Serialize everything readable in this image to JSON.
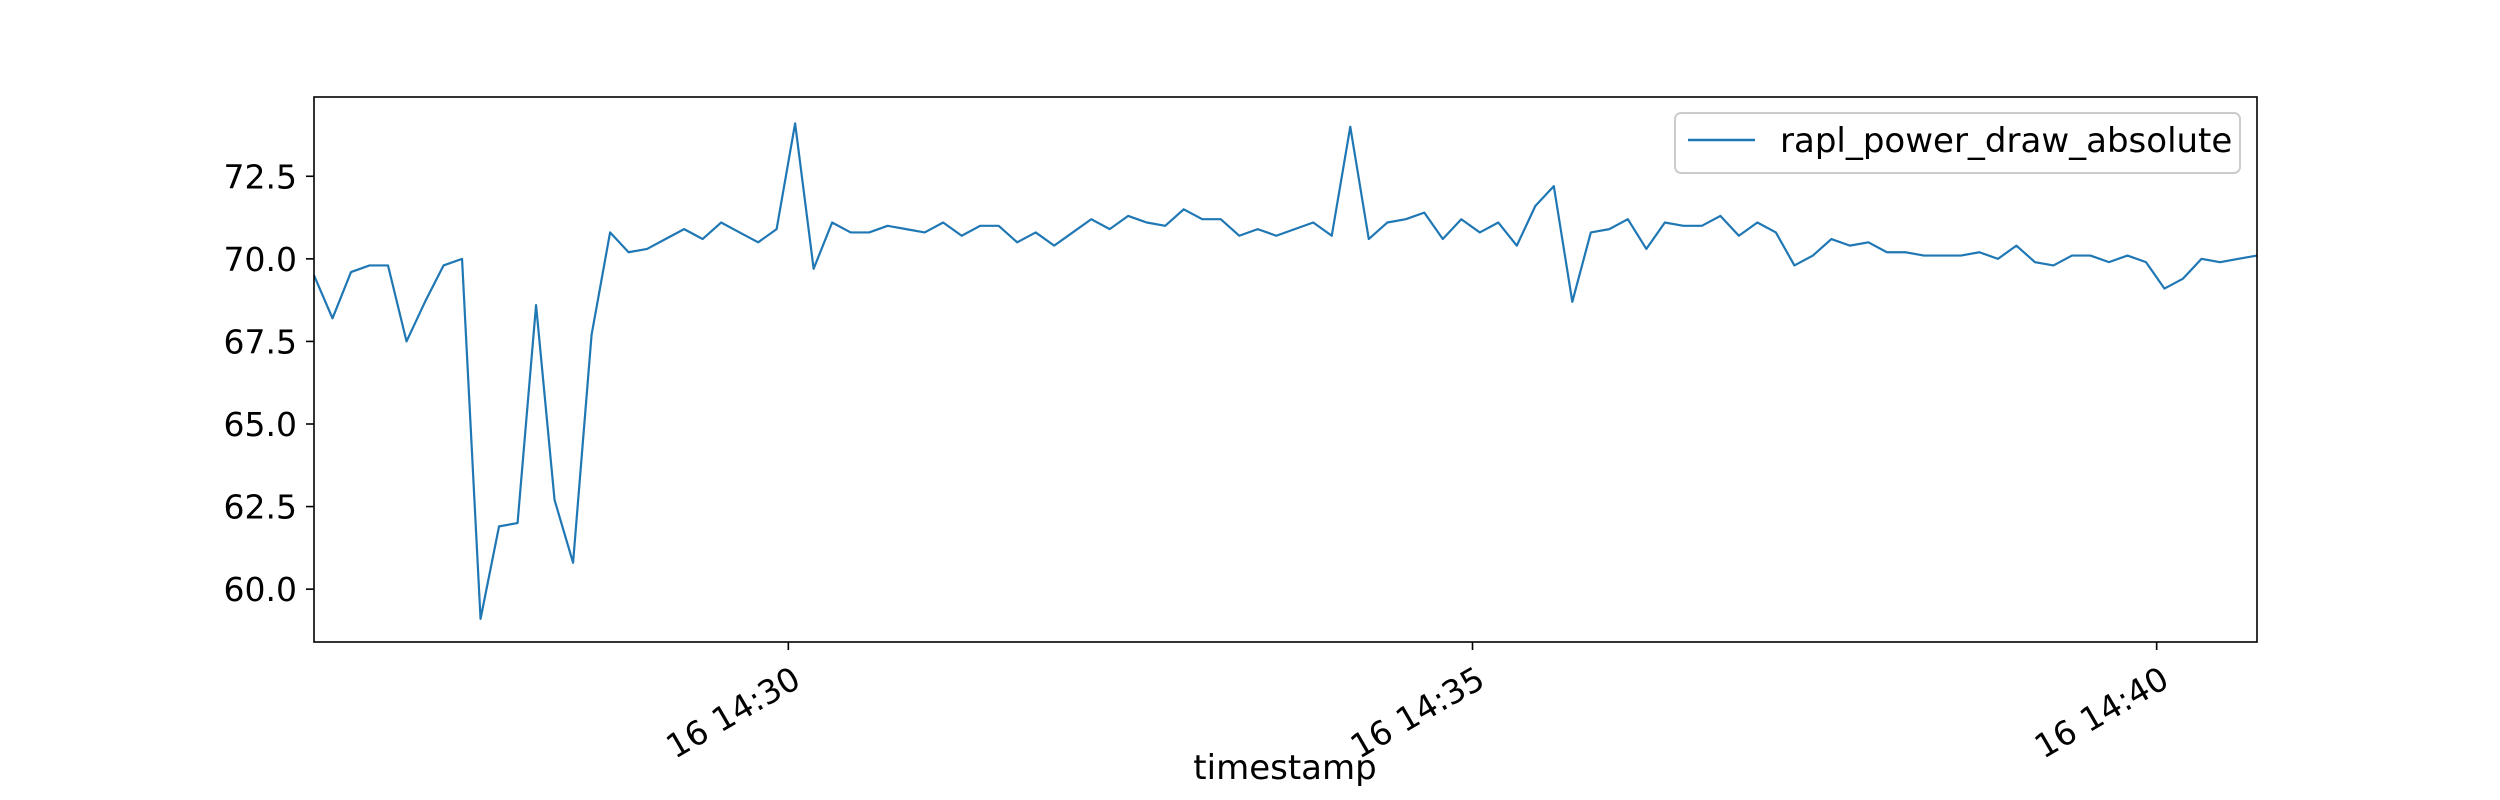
{
  "chart_data": {
    "type": "line",
    "title": "",
    "xlabel": "timestamp",
    "ylabel": "",
    "legend": {
      "placement": "top-right",
      "entries": [
        "rapl_power_draw_absolute"
      ]
    },
    "grid": false,
    "line_color": "#1f77b4",
    "x_unit": "seconds since 14:26:32",
    "xlim": [
      0,
      852
    ],
    "ylim": [
      58.4,
      74.9
    ],
    "y_ticks": [
      {
        "value": 60.0,
        "label": "60.0"
      },
      {
        "value": 62.5,
        "label": "62.5"
      },
      {
        "value": 65.0,
        "label": "65.0"
      },
      {
        "value": 67.5,
        "label": "67.5"
      },
      {
        "value": 70.0,
        "label": "70.0"
      },
      {
        "value": 72.5,
        "label": "72.5"
      }
    ],
    "x_ticks": [
      {
        "value": 208,
        "label": "16 14:30"
      },
      {
        "value": 508,
        "label": "16 14:35"
      },
      {
        "value": 808,
        "label": "16 14:40"
      }
    ],
    "series": [
      {
        "name": "rapl_power_draw_absolute",
        "values": [
          69.5,
          68.2,
          69.6,
          69.8,
          69.8,
          67.5,
          68.7,
          69.8,
          70.0,
          59.1,
          61.9,
          62.0,
          68.6,
          62.7,
          60.8,
          67.7,
          70.8,
          70.2,
          70.3,
          70.6,
          70.9,
          70.6,
          71.1,
          70.8,
          70.5,
          70.9,
          74.1,
          69.7,
          71.1,
          70.8,
          70.8,
          71.0,
          70.9,
          70.8,
          71.1,
          70.7,
          71.0,
          71.0,
          70.5,
          70.8,
          70.4,
          70.8,
          71.2,
          70.9,
          71.3,
          71.1,
          71.0,
          71.5,
          71.2,
          71.2,
          70.7,
          70.9,
          70.7,
          70.9,
          71.1,
          70.7,
          74.0,
          70.6,
          71.1,
          71.2,
          71.4,
          70.6,
          71.2,
          70.8,
          71.1,
          70.4,
          71.6,
          72.2,
          68.7,
          70.8,
          70.9,
          71.2,
          70.3,
          71.1,
          71.0,
          71.0,
          71.3,
          70.7,
          71.1,
          70.8,
          69.8,
          70.1,
          70.6,
          70.4,
          70.5,
          70.2,
          70.2,
          70.1,
          70.1,
          70.1,
          70.2,
          70.0,
          70.4,
          69.9,
          69.8,
          70.1,
          70.1,
          69.9,
          70.1,
          69.9,
          69.1,
          69.4,
          70.0,
          69.9,
          70.0,
          70.1
        ]
      }
    ]
  }
}
